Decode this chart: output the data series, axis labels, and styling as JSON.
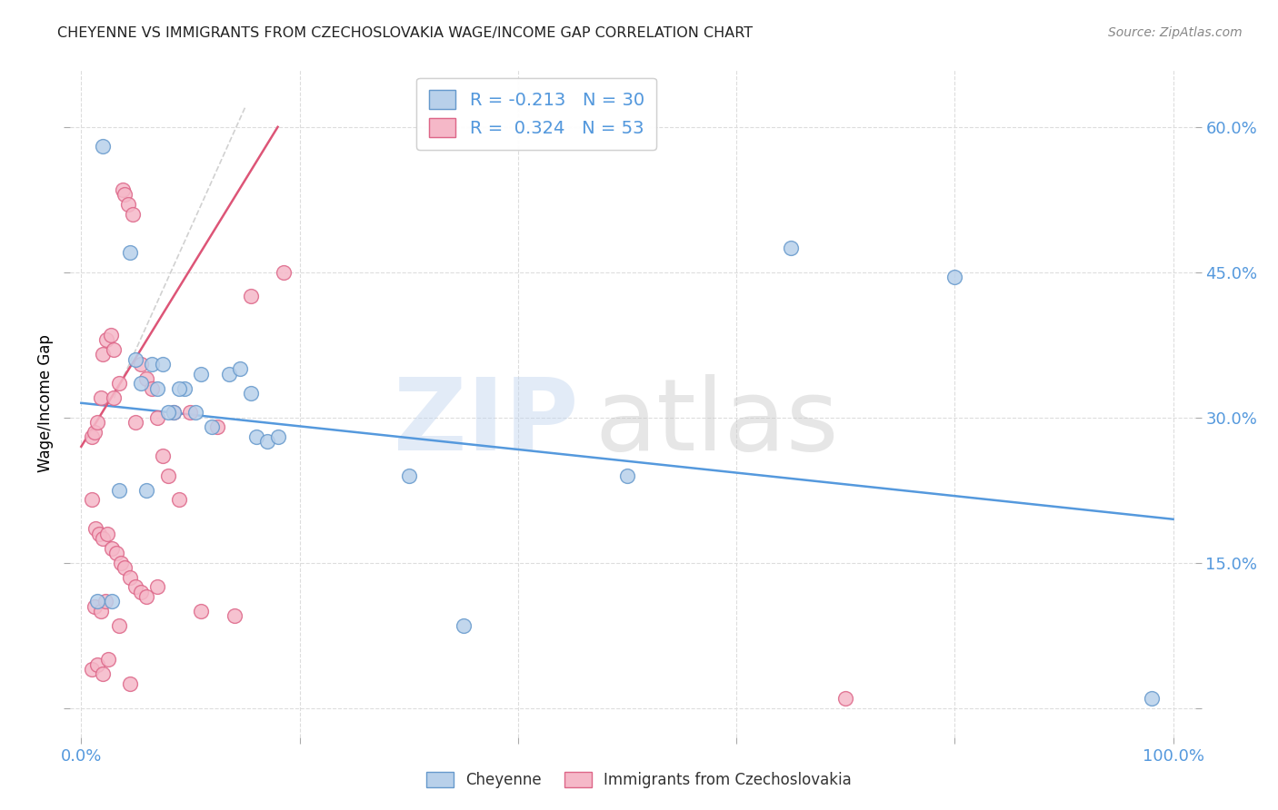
{
  "title": "CHEYENNE VS IMMIGRANTS FROM CZECHOSLOVAKIA WAGE/INCOME GAP CORRELATION CHART",
  "source": "Source: ZipAtlas.com",
  "ylabel": "Wage/Income Gap",
  "x_ticks": [
    0,
    20,
    40,
    60,
    80,
    100
  ],
  "x_tick_labels": [
    "0.0%",
    "",
    "",
    "",
    "",
    "100.0%"
  ],
  "y_ticks": [
    0,
    15,
    30,
    45,
    60
  ],
  "y_tick_labels": [
    "",
    "15.0%",
    "30.0%",
    "45.0%",
    "60.0%"
  ],
  "xlim": [
    -1,
    102
  ],
  "ylim": [
    -3,
    66
  ],
  "cheyenne_fill": "#b8d0ea",
  "cheyenne_edge": "#6699cc",
  "czech_fill": "#f5b8c8",
  "czech_edge": "#dd6688",
  "trend_blue_color": "#5599dd",
  "trend_pink_color": "#dd5577",
  "trend_gray_color": "#cccccc",
  "legend_blue_R": "-0.213",
  "legend_blue_N": "30",
  "legend_pink_R": "0.324",
  "legend_pink_N": "53",
  "legend_label_blue": "Cheyenne",
  "legend_label_pink": "Immigrants from Czechoslovakia",
  "tick_color": "#5599dd",
  "grid_color": "#dddddd",
  "cheyenne_x": [
    2.0,
    4.5,
    5.0,
    6.5,
    7.5,
    8.5,
    9.5,
    11.0,
    13.5,
    14.5,
    16.0,
    17.0,
    5.5,
    7.0,
    8.0,
    9.0,
    10.5,
    12.0,
    15.5,
    30.0,
    65.0,
    80.0,
    1.5,
    2.8,
    18.0,
    35.0,
    50.0,
    98.0,
    6.0,
    3.5
  ],
  "cheyenne_y": [
    58.0,
    47.0,
    36.0,
    35.5,
    35.5,
    30.5,
    33.0,
    34.5,
    34.5,
    35.0,
    28.0,
    27.5,
    33.5,
    33.0,
    30.5,
    33.0,
    30.5,
    29.0,
    32.5,
    24.0,
    47.5,
    44.5,
    11.0,
    11.0,
    28.0,
    8.5,
    24.0,
    1.0,
    22.5,
    22.5
  ],
  "czech_x": [
    1.0,
    1.2,
    1.5,
    1.8,
    2.0,
    2.3,
    2.7,
    3.0,
    3.5,
    3.8,
    4.0,
    4.3,
    4.7,
    5.0,
    5.5,
    6.0,
    6.5,
    7.0,
    7.5,
    8.0,
    9.0,
    10.0,
    12.5,
    15.5,
    18.5,
    1.0,
    1.3,
    1.6,
    2.0,
    2.4,
    2.8,
    3.2,
    3.6,
    4.0,
    4.5,
    5.0,
    5.5,
    6.0,
    7.0,
    8.5,
    11.0,
    14.0,
    1.0,
    1.5,
    2.0,
    2.5,
    3.0,
    3.5,
    4.5,
    70.0,
    1.2,
    1.8,
    2.2
  ],
  "czech_y": [
    28.0,
    28.5,
    29.5,
    32.0,
    36.5,
    38.0,
    38.5,
    37.0,
    33.5,
    53.5,
    53.0,
    52.0,
    51.0,
    29.5,
    35.5,
    34.0,
    33.0,
    30.0,
    26.0,
    24.0,
    21.5,
    30.5,
    29.0,
    42.5,
    45.0,
    21.5,
    18.5,
    18.0,
    17.5,
    18.0,
    16.5,
    16.0,
    15.0,
    14.5,
    13.5,
    12.5,
    12.0,
    11.5,
    12.5,
    30.5,
    10.0,
    9.5,
    4.0,
    4.5,
    3.5,
    5.0,
    32.0,
    8.5,
    2.5,
    1.0,
    10.5,
    10.0,
    11.0
  ],
  "blue_trend_x0": 0,
  "blue_trend_x1": 100,
  "blue_trend_y0": 31.5,
  "blue_trend_y1": 19.5,
  "pink_trend_x0": 0,
  "pink_trend_x1": 18,
  "pink_trend_y0": 27.0,
  "pink_trend_y1": 60.0,
  "gray_trend_x0": 3,
  "gray_trend_x1": 15,
  "gray_trend_y0": 32.0,
  "gray_trend_y1": 62.0
}
